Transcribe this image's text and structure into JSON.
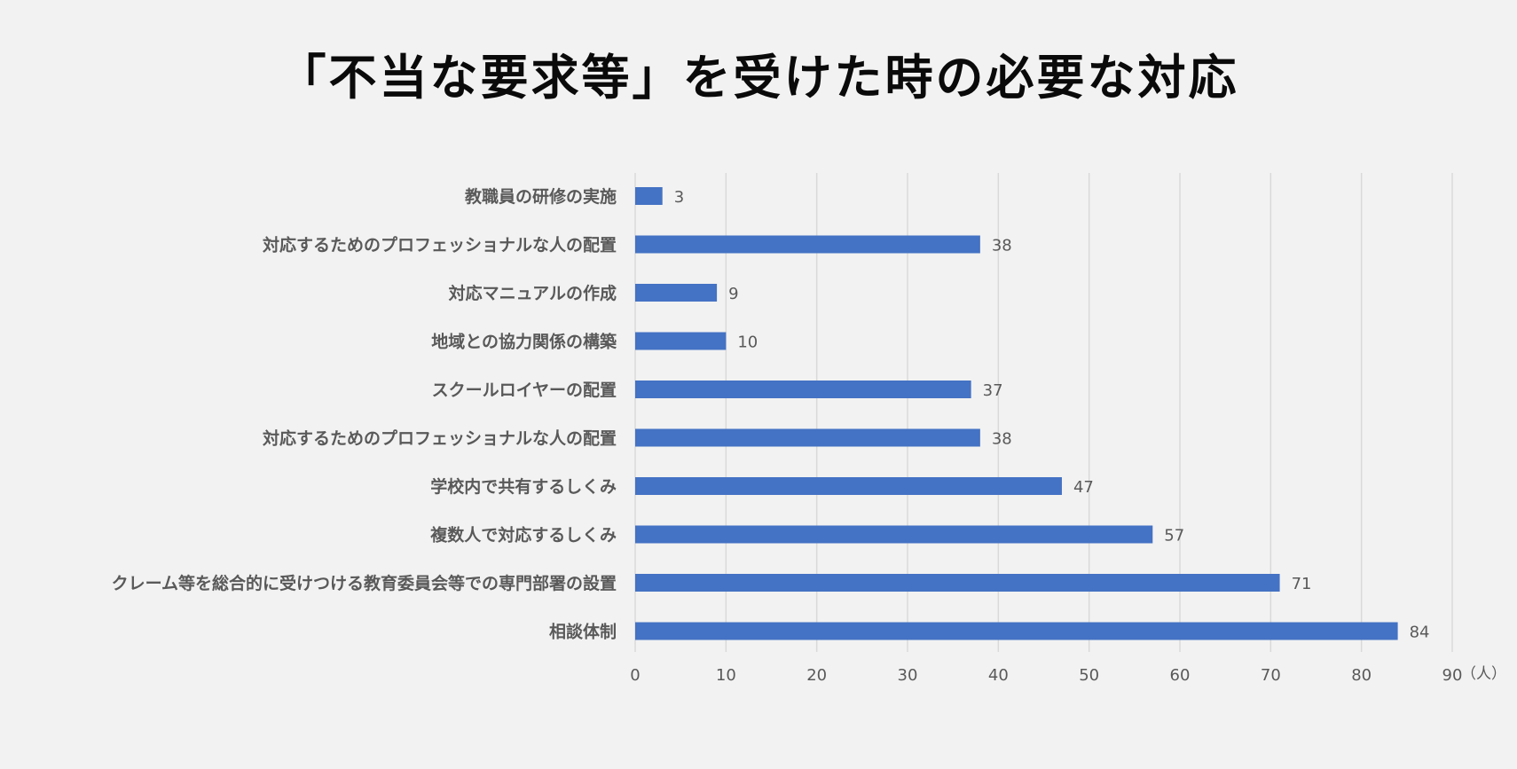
{
  "chart_data": {
    "type": "bar",
    "orientation": "horizontal",
    "title": "「不当な要求等」を受けた時の必要な対応",
    "unit_label": "（人）",
    "categories": [
      "教職員の研修の実施",
      "対応するためのプロフェッショナルな人の配置",
      "対応マニュアルの作成",
      "地域との協力関係の構築",
      "スクールロイヤーの配置",
      "対応するためのプロフェッショナルな人の配置",
      "学校内で共有するしくみ",
      "複数人で対応するしくみ",
      "クレーム等を総合的に受けつける教育委員会等での専門部署の設置",
      "相談体制"
    ],
    "values": [
      3,
      38,
      9,
      10,
      37,
      38,
      47,
      57,
      71,
      84
    ],
    "xlim": [
      0,
      90
    ],
    "xticks": [
      0,
      10,
      20,
      30,
      40,
      50,
      60,
      70,
      80,
      90
    ],
    "grid": true,
    "legend": "none",
    "bar_color": "#4472c4",
    "grid_color": "#d9d9d9",
    "label_color": "#595959"
  }
}
